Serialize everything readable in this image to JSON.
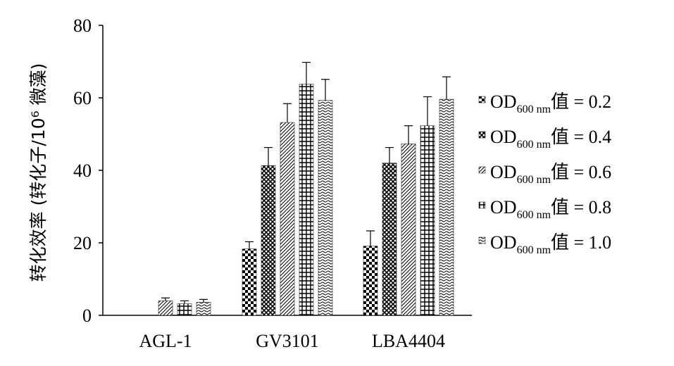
{
  "chart_data": {
    "type": "bar",
    "categories": [
      "AGL-1",
      "GV3101",
      "LBA4404"
    ],
    "ylabel": "转化效率 (转化子/10⁶ 微藻)",
    "ylim": [
      0,
      80
    ],
    "yticks": [
      "0",
      "20",
      "40",
      "60",
      "80"
    ],
    "legend_position": "right",
    "grid": false,
    "series": [
      {
        "name": "OD600 nm值 = 0.2",
        "legend_prefix": "OD",
        "legend_sub": "600 nm",
        "legend_suffix": "值 = 0.2",
        "pattern": "checker",
        "values": [
          0,
          18.3,
          19.1
        ],
        "errors": [
          0,
          2.0,
          4.2
        ]
      },
      {
        "name": "OD600 nm值 = 0.4",
        "legend_prefix": "OD",
        "legend_sub": "600 nm",
        "legend_suffix": "值 = 0.4",
        "pattern": "diamond",
        "values": [
          0,
          41.3,
          42.0
        ],
        "errors": [
          0,
          5.0,
          4.3
        ]
      },
      {
        "name": "OD600 nm值 = 0.6",
        "legend_prefix": "OD",
        "legend_sub": "600 nm",
        "legend_suffix": "值 = 0.6",
        "pattern": "diagonal",
        "values": [
          4.0,
          53.2,
          47.3
        ],
        "errors": [
          0.8,
          5.2,
          5.0
        ]
      },
      {
        "name": "OD600 nm值 = 0.8",
        "legend_prefix": "OD",
        "legend_sub": "600 nm",
        "legend_suffix": "值 = 0.8",
        "pattern": "grid",
        "values": [
          3.2,
          63.8,
          52.3
        ],
        "errors": [
          0.8,
          6.0,
          8.0
        ]
      },
      {
        "name": "OD600 nm值 = 1.0",
        "legend_prefix": "OD",
        "legend_sub": "600 nm",
        "legend_suffix": "值 = 1.0",
        "pattern": "wave",
        "values": [
          3.6,
          59.3,
          59.6
        ],
        "errors": [
          0.8,
          5.8,
          6.2
        ]
      }
    ]
  }
}
